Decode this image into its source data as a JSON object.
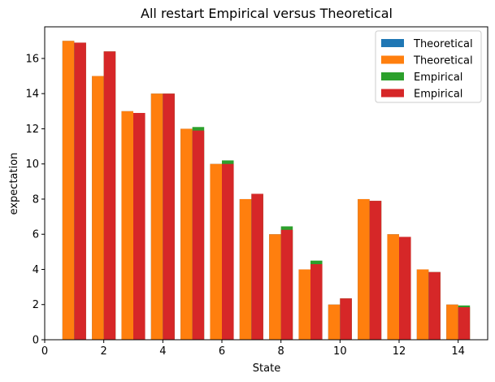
{
  "chart_data": {
    "type": "bar",
    "title": "All restart Empirical versus Theoretical",
    "xlabel": "State",
    "ylabel": "expectation",
    "xlim": [
      0,
      15
    ],
    "ylim": [
      0,
      17.8
    ],
    "x_ticks": [
      0,
      2,
      4,
      6,
      8,
      10,
      12,
      14
    ],
    "y_ticks": [
      0,
      2,
      4,
      6,
      8,
      10,
      12,
      14,
      16
    ],
    "grid": false,
    "legend_position": "top-right",
    "states": [
      1,
      2,
      3,
      4,
      5,
      6,
      7,
      8,
      9,
      10,
      11,
      12,
      13,
      14
    ],
    "series": [
      {
        "name": "Theoretical",
        "color": "#1f77b4",
        "offset": -0.2,
        "values": [
          17,
          15,
          13,
          14,
          12,
          10,
          8,
          6,
          4,
          2,
          8,
          6,
          4,
          2
        ]
      },
      {
        "name": "Theoretical",
        "color": "#ff7f0e",
        "offset": -0.2,
        "values": [
          17,
          15,
          13,
          14,
          12,
          10,
          8,
          6,
          4,
          2,
          8,
          6,
          4,
          2
        ]
      },
      {
        "name": "Empirical",
        "color": "#2ca02c",
        "offset": 0.2,
        "values": [
          16.9,
          16.4,
          12.9,
          14.0,
          12.1,
          10.2,
          8.3,
          6.45,
          4.5,
          2.35,
          7.9,
          5.85,
          3.85,
          1.95
        ]
      },
      {
        "name": "Empirical",
        "color": "#d62728",
        "offset": 0.2,
        "values": [
          16.9,
          16.4,
          12.9,
          14.0,
          11.9,
          10.0,
          8.3,
          6.25,
          4.3,
          2.35,
          7.9,
          5.85,
          3.85,
          1.85
        ]
      }
    ]
  }
}
